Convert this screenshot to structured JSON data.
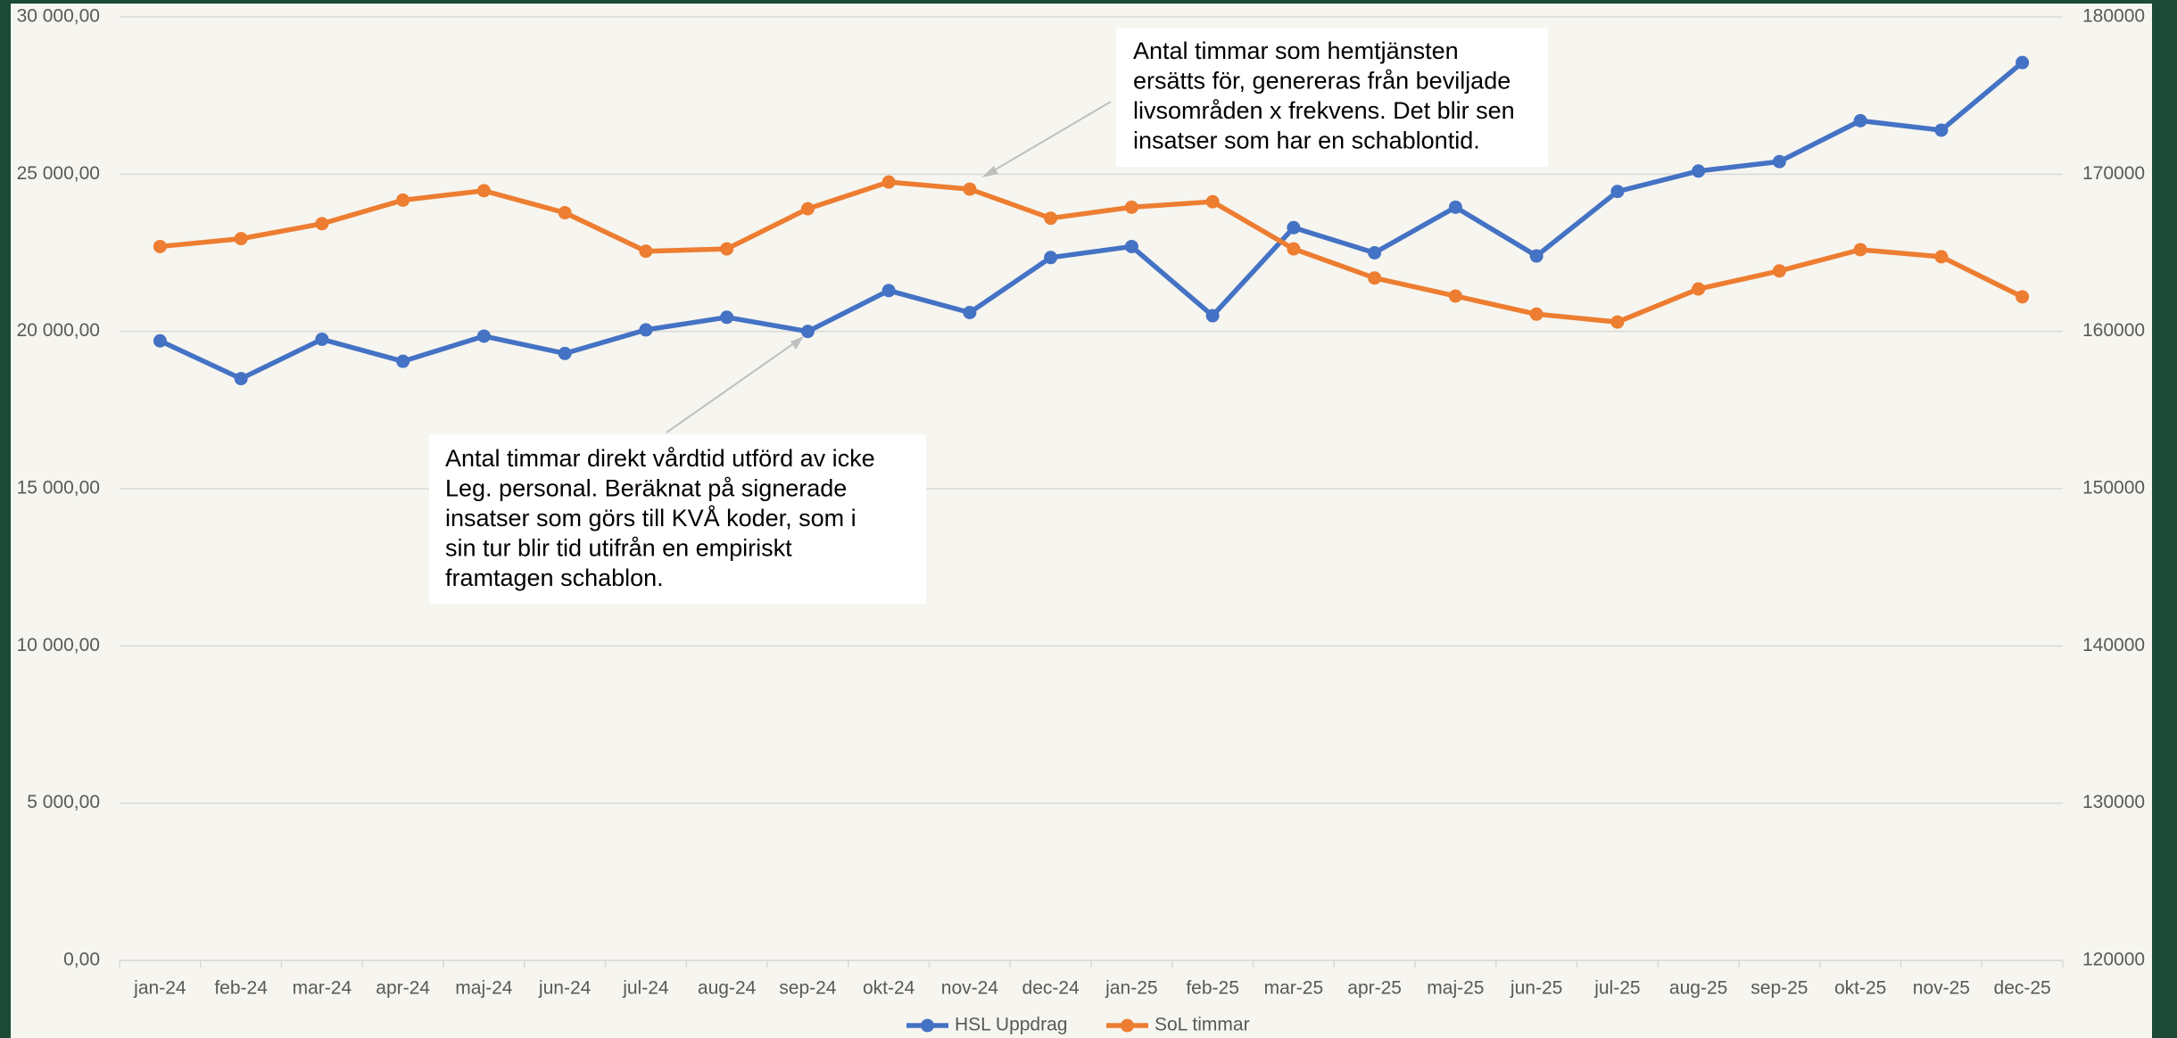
{
  "chart_data": {
    "type": "line",
    "categories": [
      "jan-24",
      "feb-24",
      "mar-24",
      "apr-24",
      "maj-24",
      "jun-24",
      "jul-24",
      "aug-24",
      "sep-24",
      "okt-24",
      "nov-24",
      "dec-24",
      "jan-25",
      "feb-25",
      "mar-25",
      "apr-25",
      "maj-25",
      "jun-25",
      "jul-25",
      "aug-25",
      "sep-25",
      "okt-25",
      "nov-25",
      "dec-25"
    ],
    "series": [
      {
        "name": "HSL Uppdrag",
        "color": "#4472c4",
        "values": [
          19700,
          18500,
          19750,
          19050,
          19850,
          19300,
          20050,
          20450,
          20000,
          21300,
          20600,
          22350,
          22700,
          20500,
          23300,
          22500,
          23950,
          22400,
          24450,
          25100,
          25400,
          26700,
          26400,
          28550
        ]
      },
      {
        "name": "SoL timmar",
        "color": "#ed7d31",
        "axis": "y2",
        "values": [
          165400,
          165900,
          166850,
          168350,
          168950,
          167550,
          165100,
          165250,
          167800,
          169500,
          169050,
          167200,
          167900,
          168250,
          165250,
          163400,
          162250,
          161100,
          160600,
          162700,
          163850,
          165200,
          164750,
          162200
        ]
      }
    ],
    "ylim": [
      0,
      30000
    ],
    "yticks": [
      {
        "value": 0,
        "label": "0,00"
      },
      {
        "value": 5000,
        "label": "5 000,00"
      },
      {
        "value": 10000,
        "label": "10 000,00"
      },
      {
        "value": 15000,
        "label": "15 000,00"
      },
      {
        "value": 20000,
        "label": "20 000,00"
      },
      {
        "value": 25000,
        "label": "25 000,00"
      },
      {
        "value": 30000,
        "label": "30 000,00"
      }
    ],
    "y2lim": [
      120000,
      180000
    ],
    "y2ticks": [
      120000,
      130000,
      140000,
      150000,
      160000,
      170000,
      180000
    ],
    "grid": true,
    "legend": "bottom",
    "annotations": [
      {
        "lines": [
          "Antal timmar som hemtjänsten",
          "ersätts för, genereras från beviljade",
          "livsområden x frekvens. Det blir sen",
          "insatser som har en schablontid."
        ]
      },
      {
        "lines": [
          "Antal timmar direkt vårdtid utförd av icke",
          "Leg. personal. Beräknat på signerade",
          "insatser som görs till KVÅ koder, som i",
          "sin tur blir tid utifrån en empiriskt",
          "framtagen schablon."
        ]
      }
    ]
  }
}
